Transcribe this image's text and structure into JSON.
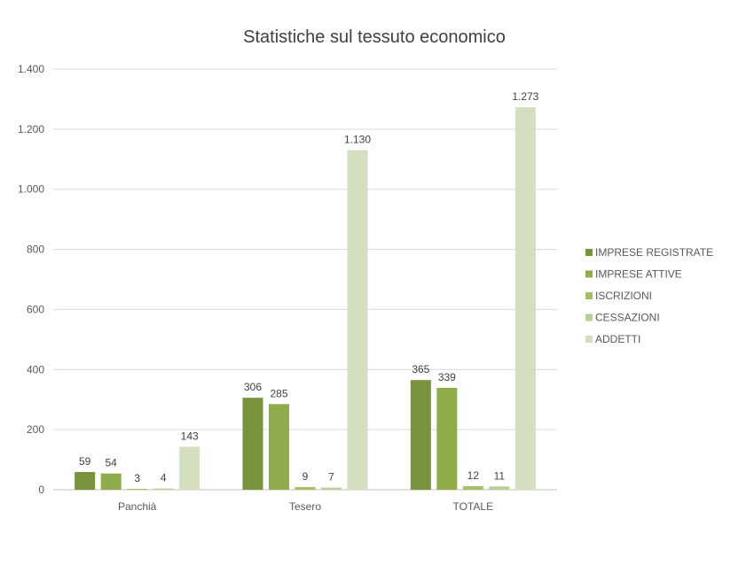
{
  "chart_data": {
    "type": "bar",
    "title": "Statistiche sul tessuto economico",
    "categories": [
      "Panchià",
      "Tesero",
      "TOTALE"
    ],
    "series": [
      {
        "name": "IMPRESE REGISTRATE",
        "color": "#77933c",
        "values": [
          59,
          306,
          365
        ],
        "labels": [
          "59",
          "306",
          "365"
        ]
      },
      {
        "name": "IMPRESE ATTIVE",
        "color": "#8eac4a",
        "values": [
          54,
          285,
          339
        ],
        "labels": [
          "54",
          "285",
          "339"
        ]
      },
      {
        "name": "ISCRIZIONI",
        "color": "#a3c064",
        "values": [
          3,
          9,
          12
        ],
        "labels": [
          "3",
          "9",
          "12"
        ]
      },
      {
        "name": "CESSAZIONI",
        "color": "#b9cf96",
        "values": [
          4,
          7,
          11
        ],
        "labels": [
          "4",
          "7",
          "11"
        ]
      },
      {
        "name": "ADDETTI",
        "color": "#d3dfbf",
        "values": [
          143,
          1130,
          1273
        ],
        "labels": [
          "143",
          "1.130",
          "1.273"
        ]
      }
    ],
    "ylim": [
      0,
      1400
    ],
    "yticks": [
      0,
      200,
      400,
      600,
      800,
      1000,
      1200,
      1400
    ],
    "ytick_labels": [
      "0",
      "200",
      "400",
      "600",
      "800",
      "1.000",
      "1.200",
      "1.400"
    ],
    "grid": true,
    "legend_position": "right"
  }
}
